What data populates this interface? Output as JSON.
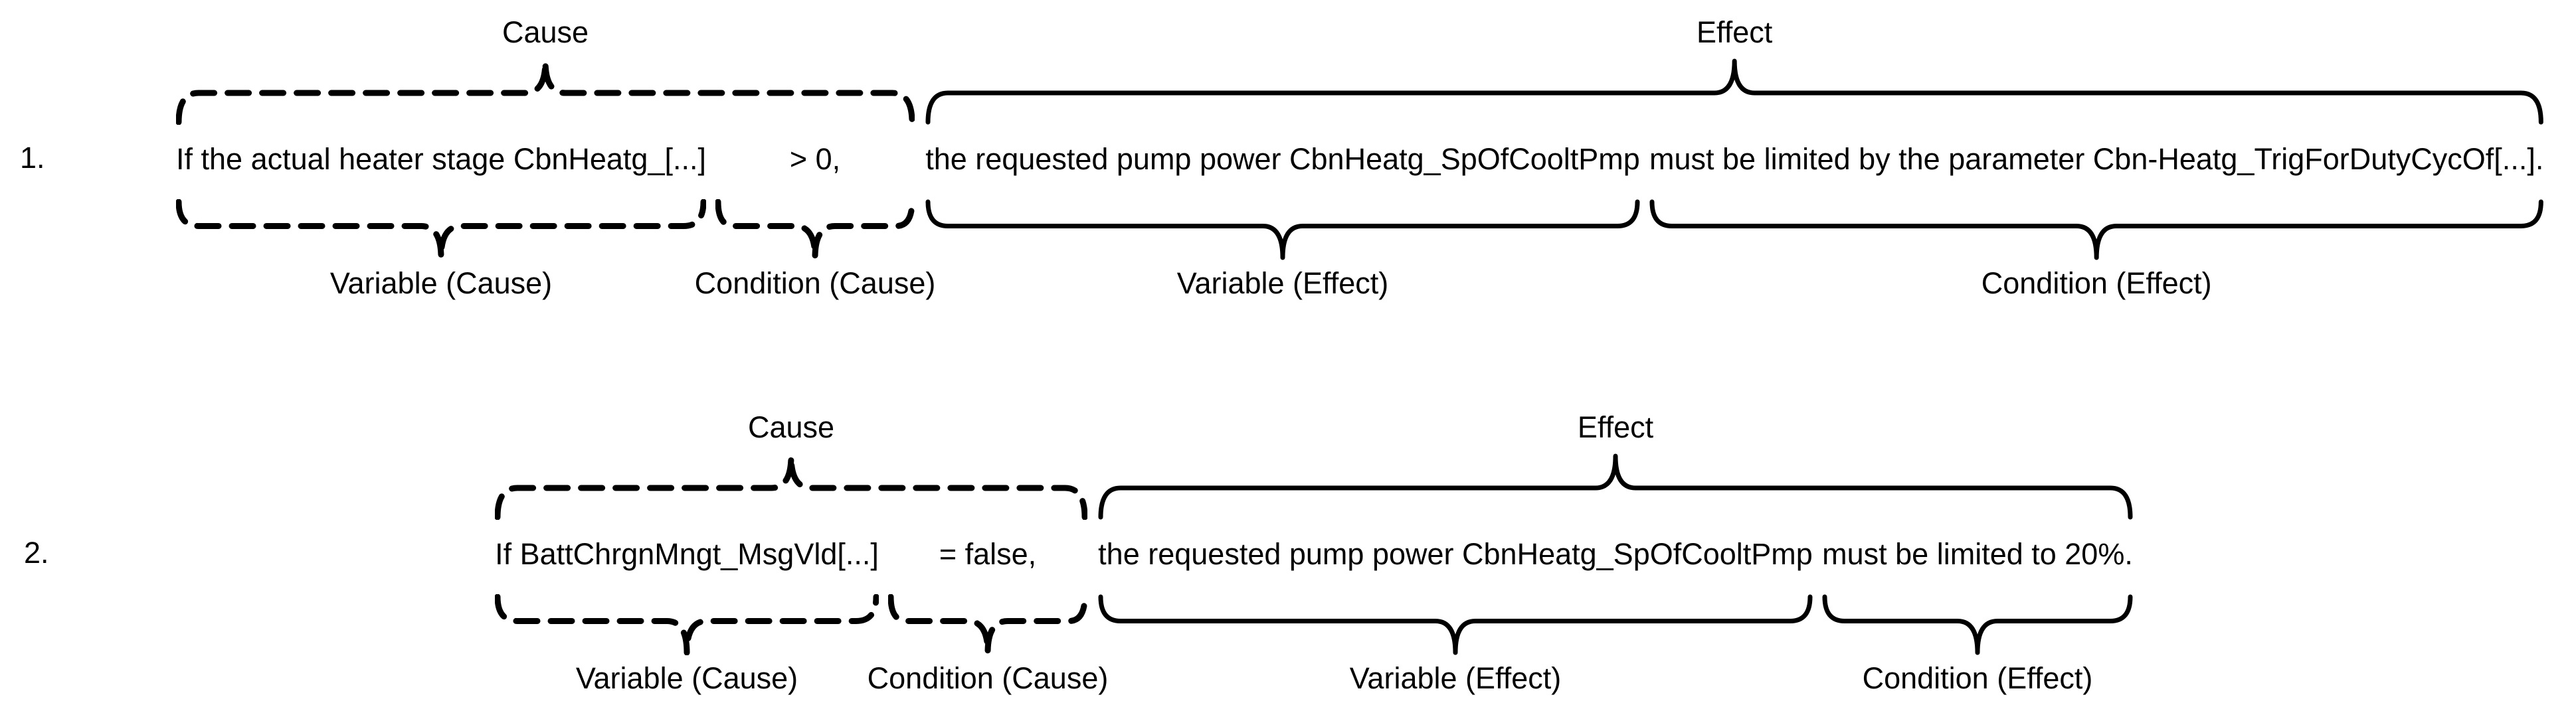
{
  "page": {
    "background": "#ffffff",
    "ink": "#000000"
  },
  "rows": [
    {
      "number": "1.",
      "cause": {
        "label": "Cause",
        "line_style": "dashed",
        "variable": {
          "text": "If the actual heater stage CbnHeatg_[...]",
          "label": "Variable (Cause)"
        },
        "condition": {
          "text": "> 0,",
          "label": "Condition (Cause)"
        }
      },
      "effect": {
        "label": "Effect",
        "line_style": "solid",
        "variable": {
          "text": "the requested pump power CbnHeatg_SpOfCooltPmp",
          "label": "Variable (Effect)"
        },
        "condition": {
          "text": "must be limited by the parameter Cbn-Heatg_TrigForDutyCycOf[...].",
          "label": "Condition (Effect)"
        }
      }
    },
    {
      "number": "2.",
      "cause": {
        "label": "Cause",
        "line_style": "dashed",
        "variable": {
          "text": "If BattChrgnMngt_MsgVld[...]",
          "label": "Variable (Cause)"
        },
        "condition": {
          "text": "= false,",
          "label": "Condition (Cause)"
        }
      },
      "effect": {
        "label": "Effect",
        "line_style": "solid",
        "variable": {
          "text": "the requested pump power CbnHeatg_SpOfCooltPmp",
          "label": "Variable (Effect)"
        },
        "condition": {
          "text": "must be limited to 20%.",
          "label": "Condition (Effect)"
        }
      }
    }
  ]
}
